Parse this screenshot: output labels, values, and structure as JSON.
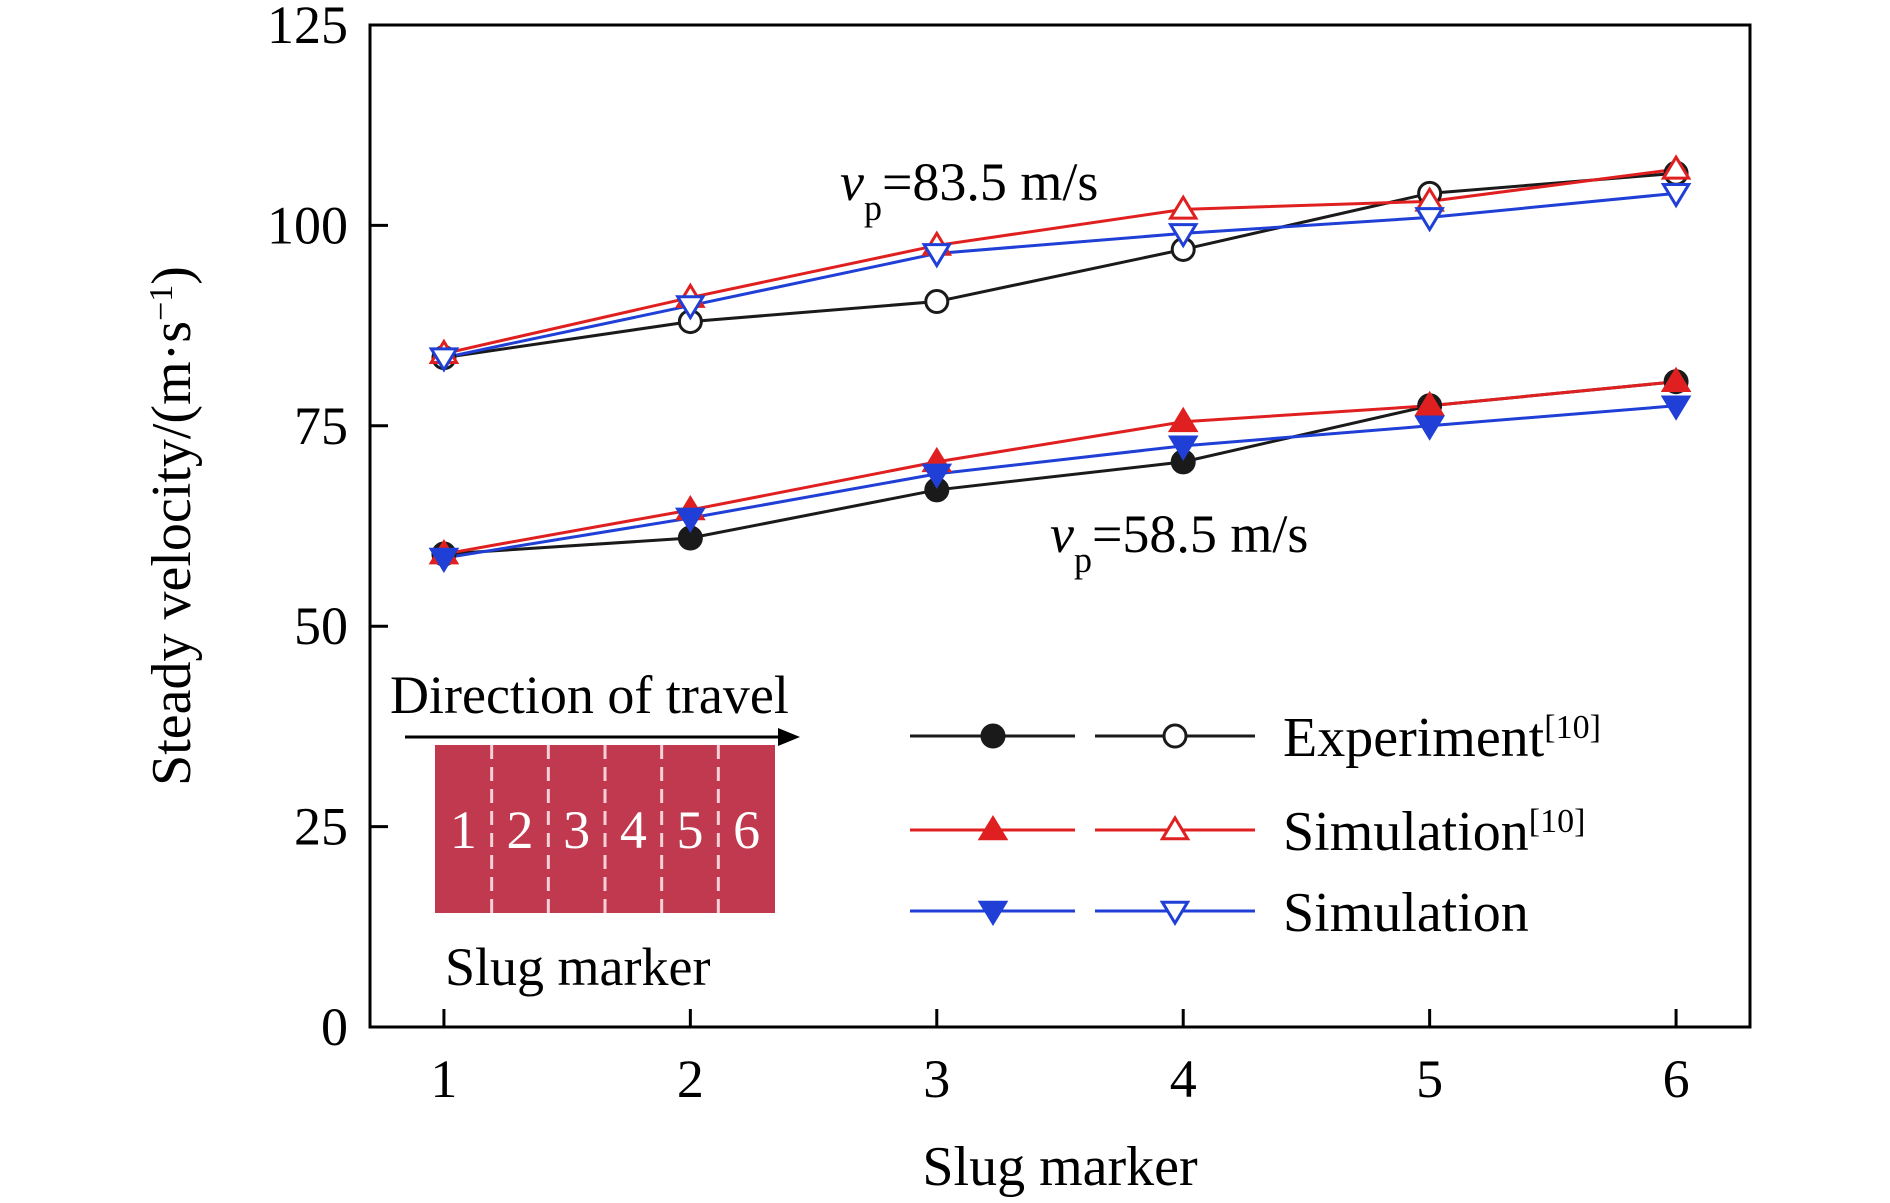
{
  "chart_data": {
    "type": "line",
    "x_axis": {
      "label": "Slug marker",
      "ticks": [
        "1",
        "2",
        "3",
        "4",
        "5",
        "6"
      ],
      "range": [
        0.7,
        6.3
      ]
    },
    "y_axis": {
      "label_main": "Steady velocity/(m·s",
      "label_sup": "−1",
      "label_close": ")",
      "ticks": [
        "0",
        "25",
        "50",
        "75",
        "100",
        "125"
      ],
      "range": [
        0,
        125
      ]
    },
    "categories": [
      1,
      2,
      3,
      4,
      5,
      6
    ],
    "groups": [
      {
        "label_var": "v",
        "label_sub": "p",
        "label_value": "=83.5 m/s",
        "series": [
          {
            "name": "Experiment",
            "marker": "open-circle",
            "color": "#1a1a1a",
            "values": [
              83.5,
              88,
              90.5,
              97,
              104,
              106.5
            ]
          },
          {
            "name": "Simulation[10]",
            "marker": "open-triangle-up",
            "color": "#e02020",
            "values": [
              84,
              91,
              97.5,
              102,
              103,
              107
            ]
          },
          {
            "name": "Simulation",
            "marker": "open-triangle-down",
            "color": "#1f3fd6",
            "values": [
              83.5,
              90,
              96.5,
              99,
              101,
              104
            ]
          }
        ]
      },
      {
        "label_var": "v",
        "label_sub": "p",
        "label_value": "=58.5 m/s",
        "series": [
          {
            "name": "Experiment",
            "marker": "filled-circle",
            "color": "#1a1a1a",
            "values": [
              59,
              61,
              67,
              70.5,
              77.5,
              80.5
            ]
          },
          {
            "name": "Simulation[10]",
            "marker": "filled-triangle-up",
            "color": "#e02020",
            "values": [
              59,
              64.5,
              70.5,
              75.5,
              77.5,
              80.5
            ]
          },
          {
            "name": "Simulation",
            "marker": "filled-triangle-down",
            "color": "#1f3fd6",
            "values": [
              58.5,
              63.5,
              69,
              72.5,
              75,
              77.5
            ]
          }
        ]
      }
    ],
    "legend": {
      "position": "bottom-right",
      "entries": [
        {
          "label": "Experiment",
          "sup": "[10]",
          "color": "#1a1a1a",
          "filled_marker": "filled-circle",
          "open_marker": "open-circle"
        },
        {
          "label": "Simulation",
          "sup": "[10]",
          "color": "#e02020",
          "filled_marker": "filled-triangle-up",
          "open_marker": "open-triangle-up"
        },
        {
          "label": "Simulation",
          "sup": "",
          "color": "#1f3fd6",
          "filled_marker": "filled-triangle-down",
          "open_marker": "open-triangle-down"
        }
      ]
    },
    "inset": {
      "title": "Direction of travel",
      "caption": "Slug marker",
      "segments": [
        "1",
        "2",
        "3",
        "4",
        "5",
        "6"
      ],
      "fill_color": "#c0394f"
    }
  }
}
